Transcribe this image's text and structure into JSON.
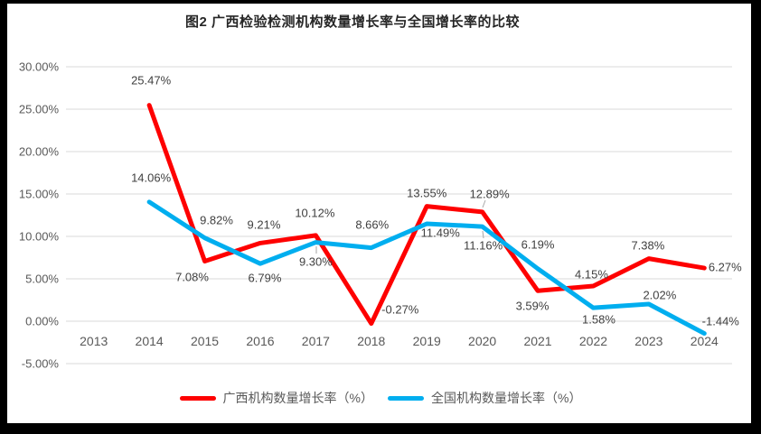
{
  "chart_data": {
    "type": "line",
    "title": "图2 广西检验检测机构数量增长率与全国增长率的比较",
    "categories": [
      "2013",
      "2014",
      "2015",
      "2016",
      "2017",
      "2018",
      "2019",
      "2020",
      "2021",
      "2022",
      "2023",
      "2024"
    ],
    "series": [
      {
        "name": "广西机构数量增长率（%）",
        "color": "#FE0000",
        "values": [
          null,
          25.47,
          7.08,
          9.21,
          10.12,
          -0.27,
          13.55,
          12.89,
          3.59,
          4.15,
          7.38,
          6.27
        ],
        "labels": [
          "",
          "25.47%",
          "7.08%",
          "9.21%",
          "10.12%",
          "-0.27%",
          "13.55%",
          "12.89%",
          "3.59%",
          "4.15%",
          "7.38%",
          "6.27%"
        ]
      },
      {
        "name": "全国机构数量增长率（%）",
        "color": "#00AEEF",
        "values": [
          null,
          14.06,
          9.82,
          6.79,
          9.3,
          8.66,
          11.49,
          11.16,
          6.19,
          1.58,
          2.02,
          -1.44
        ],
        "labels": [
          "",
          "14.06%",
          "9.82%",
          "6.79%",
          "9.30%",
          "8.66%",
          "11.49%",
          "11.16%",
          "6.19%",
          "1.58%",
          "2.02%",
          "-1.44%"
        ]
      }
    ],
    "y_axis": {
      "tick_labels": [
        "30.00%",
        "25.00%",
        "20.00%",
        "15.00%",
        "10.00%",
        "5.00%",
        "0.00%",
        "-5.00%"
      ],
      "tick_values": [
        30,
        25,
        20,
        15,
        10,
        5,
        0,
        -5
      ],
      "min": -5,
      "max": 30
    },
    "grid": true,
    "legend_position": "bottom",
    "gridline_color": "#D9D9D9",
    "axis_text_color": "#595959",
    "data_label_color": "#404040"
  }
}
